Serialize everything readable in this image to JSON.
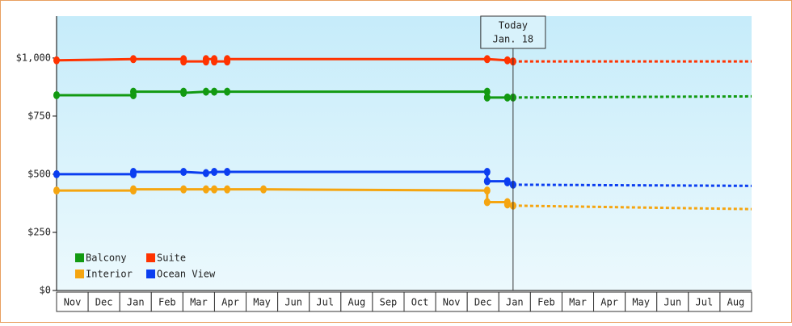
{
  "chart_data": {
    "type": "line",
    "categories": [
      "Nov",
      "Dec",
      "Jan",
      "Feb",
      "Mar",
      "Apr",
      "May",
      "Jun",
      "Jul",
      "Aug",
      "Sep",
      "Oct",
      "Nov",
      "Dec",
      "Jan",
      "Feb",
      "Mar",
      "Apr",
      "May",
      "Jun",
      "Jul",
      "Aug"
    ],
    "xlim": [
      0,
      22
    ],
    "ylim": [
      0,
      1180
    ],
    "yticks": [
      {
        "value": 0,
        "label": "$0"
      },
      {
        "value": 250,
        "label": "$250"
      },
      {
        "value": 500,
        "label": "$500"
      },
      {
        "value": 750,
        "label": "$750"
      },
      {
        "value": 1000,
        "label": "$1,000"
      }
    ],
    "annotation": {
      "x": 14.45,
      "lines": [
        "Today",
        "Jan. 18"
      ]
    },
    "series": [
      {
        "name": "Balcony",
        "color": "#129a12",
        "x": [
          0,
          2.43,
          2.43,
          4.02,
          4.02,
          4.73,
          4.99,
          5.4,
          13.63,
          13.63,
          14.27,
          14.45
        ],
        "values": [
          840,
          840,
          855,
          855,
          850,
          855,
          855,
          855,
          855,
          830,
          830,
          830
        ],
        "forecast": {
          "x": [
            14.45,
            22
          ],
          "values": [
            830,
            835
          ]
        }
      },
      {
        "name": "Suite",
        "color": "#ff3300",
        "x": [
          0,
          2.43,
          4.02,
          4.02,
          4.73,
          4.73,
          4.99,
          4.99,
          5.4,
          5.4,
          13.63,
          14.27,
          14.45
        ],
        "values": [
          990,
          995,
          995,
          985,
          985,
          995,
          995,
          985,
          985,
          995,
          995,
          990,
          985
        ],
        "forecast": {
          "x": [
            14.45,
            22
          ],
          "values": [
            985,
            985
          ]
        }
      },
      {
        "name": "Interior",
        "color": "#f5a510",
        "x": [
          0,
          2.43,
          2.43,
          4.02,
          4.73,
          4.99,
          5.4,
          6.55,
          13.63,
          13.63,
          14.27,
          14.27,
          14.45
        ],
        "values": [
          430,
          430,
          435,
          435,
          435,
          435,
          435,
          435,
          430,
          380,
          380,
          370,
          365
        ],
        "forecast": {
          "x": [
            14.45,
            22
          ],
          "values": [
            365,
            350
          ]
        }
      },
      {
        "name": "Ocean View",
        "color": "#0b3ef0",
        "x": [
          0,
          2.43,
          2.43,
          4.02,
          4.73,
          4.99,
          5.4,
          13.63,
          13.63,
          14.27,
          14.27,
          14.45
        ],
        "values": [
          500,
          500,
          510,
          510,
          505,
          510,
          510,
          510,
          470,
          470,
          465,
          455
        ],
        "forecast": {
          "x": [
            14.45,
            22
          ],
          "values": [
            455,
            450
          ]
        }
      }
    ]
  }
}
